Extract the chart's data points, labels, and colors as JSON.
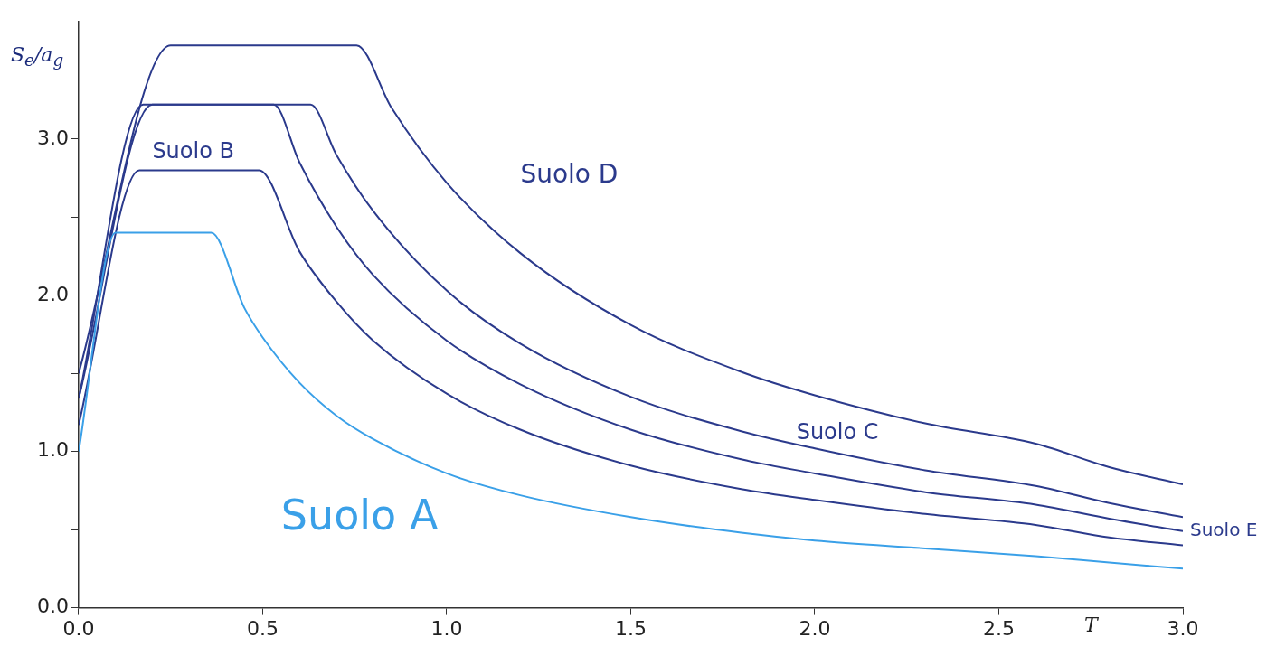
{
  "chart_data": {
    "type": "line",
    "ylabel": "S$_{e}$/a$_{g}$",
    "xlabel": "T",
    "xlim": [
      0,
      3
    ],
    "ylim": [
      0,
      3.75
    ],
    "xticks": [
      {
        "value": 0,
        "label": "0.0"
      },
      {
        "value": 0.5,
        "label": "0.5"
      },
      {
        "value": 1,
        "label": "1.0"
      },
      {
        "value": 1.5,
        "label": "1.5"
      },
      {
        "value": 2,
        "label": "2.0"
      },
      {
        "value": 2.5,
        "label": "2.5"
      },
      {
        "value": 3,
        "label": "3.0"
      }
    ],
    "yticks": [
      {
        "value": 0,
        "label": "0.0"
      },
      {
        "value": 0.5,
        "label": null
      },
      {
        "value": 1,
        "label": "1.0"
      },
      {
        "value": 1.5,
        "label": null
      },
      {
        "value": 2,
        "label": "2.0"
      },
      {
        "value": 2.5,
        "label": null
      },
      {
        "value": 3,
        "label": "3.0"
      },
      {
        "value": 3.5,
        "label": null
      }
    ],
    "marker": "none",
    "line_style": "solid",
    "series": [
      {
        "name": "Suolo A",
        "color": "#3aa0e8",
        "x": [
          0,
          0.1,
          0.36,
          0.45,
          0.5,
          0.6,
          0.7,
          0.8,
          1.0,
          1.2,
          1.5,
          1.8,
          2.0,
          2.3,
          2.6,
          2.8,
          3.0
        ],
        "values": [
          1.0,
          2.4,
          2.4,
          1.92,
          1.73,
          1.44,
          1.23,
          1.08,
          0.86,
          0.72,
          0.58,
          0.48,
          0.43,
          0.38,
          0.33,
          0.29,
          0.25
        ]
      },
      {
        "name": "Suolo B",
        "color": "#2b3a8c",
        "x": [
          0,
          0.165,
          0.49,
          0.6,
          0.7,
          0.8,
          1.0,
          1.2,
          1.5,
          1.8,
          2.0,
          2.3,
          2.6,
          2.8,
          3.0
        ],
        "values": [
          1.17,
          2.8,
          2.8,
          2.28,
          1.96,
          1.71,
          1.37,
          1.14,
          0.91,
          0.76,
          0.69,
          0.6,
          0.53,
          0.45,
          0.4
        ]
      },
      {
        "name": "Suolo C",
        "color": "#2b3a8c",
        "x": [
          0,
          0.175,
          0.63,
          0.7,
          0.8,
          1.0,
          1.2,
          1.5,
          1.8,
          2.0,
          2.3,
          2.6,
          2.8,
          3.0
        ],
        "values": [
          1.34,
          3.22,
          3.22,
          2.9,
          2.54,
          2.03,
          1.69,
          1.35,
          1.13,
          1.02,
          0.88,
          0.78,
          0.67,
          0.58
        ]
      },
      {
        "name": "Suolo D",
        "color": "#2b3a8c",
        "x": [
          0,
          0.25,
          0.755,
          0.85,
          1.0,
          1.2,
          1.5,
          1.8,
          2.0,
          2.3,
          2.6,
          2.8,
          3.0
        ],
        "values": [
          1.5,
          3.6,
          3.6,
          3.2,
          2.72,
          2.27,
          1.81,
          1.51,
          1.36,
          1.18,
          1.05,
          0.9,
          0.79
        ]
      },
      {
        "name": "Suolo E",
        "color": "#2b3a8c",
        "x": [
          0,
          0.2,
          0.53,
          0.6,
          0.7,
          0.8,
          1.0,
          1.2,
          1.5,
          1.8,
          2.0,
          2.3,
          2.6,
          2.8,
          3.0
        ],
        "values": [
          1.34,
          3.22,
          3.22,
          2.85,
          2.44,
          2.13,
          1.71,
          1.43,
          1.14,
          0.95,
          0.86,
          0.74,
          0.66,
          0.57,
          0.49
        ]
      }
    ]
  }
}
